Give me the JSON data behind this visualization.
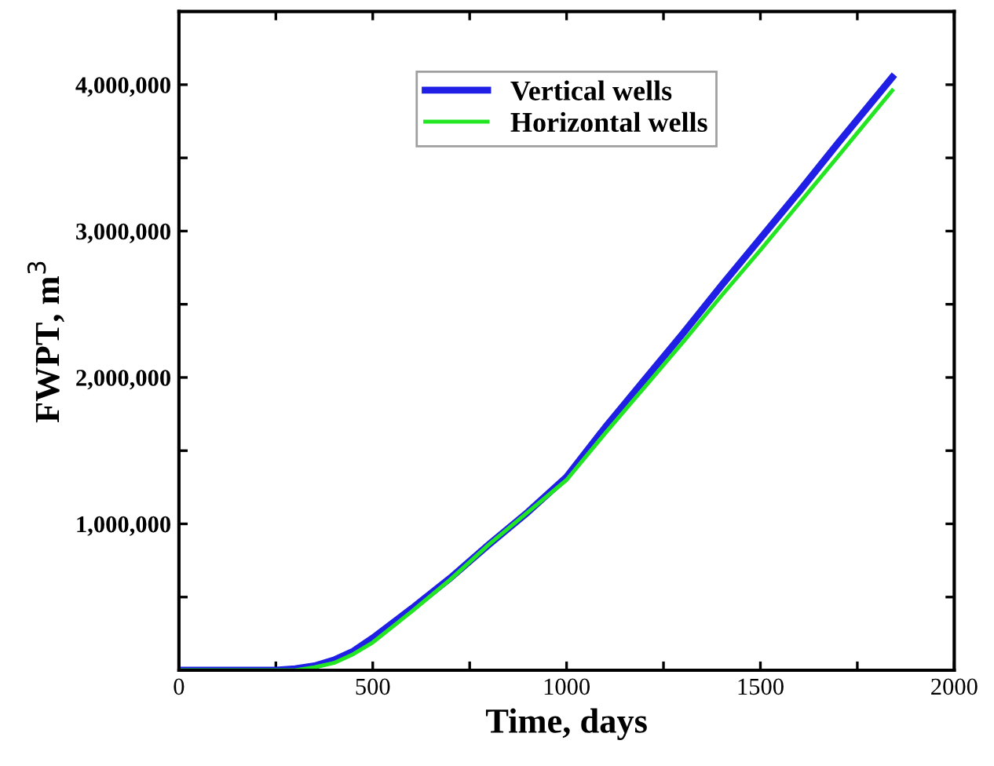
{
  "chart_data": {
    "type": "line",
    "xlabel": "Time, days",
    "ylabel": "FWPT, m$^{3}$",
    "xlim": [
      0,
      2000
    ],
    "ylim": [
      0,
      4500000
    ],
    "xticks": [
      0,
      {
        "value": 250,
        "label": null
      },
      500,
      {
        "value": 750,
        "label": null
      },
      1000,
      {
        "value": 1250,
        "label": null
      },
      1500,
      {
        "value": 1750,
        "label": null
      },
      2000
    ],
    "yticks": [
      {
        "value": 500000,
        "label": null
      },
      {
        "value": 1000000,
        "label": "1,000,000"
      },
      {
        "value": 1500000,
        "label": null
      },
      {
        "value": 2000000,
        "label": "2,000,000"
      },
      {
        "value": 2500000,
        "label": null
      },
      {
        "value": 3000000,
        "label": "3,000,000"
      },
      {
        "value": 3500000,
        "label": null
      },
      {
        "value": 4000000,
        "label": "4,000,000"
      }
    ],
    "x": [
      0,
      250,
      300,
      350,
      400,
      450,
      500,
      600,
      700,
      800,
      900,
      1000,
      1100,
      1200,
      1300,
      1400,
      1500,
      1600,
      1700,
      1840
    ],
    "series": [
      {
        "name": "Vertical wells",
        "color": "#1f1fe6",
        "values": [
          0,
          0,
          10000,
          30000,
          70000,
          130000,
          220000,
          420000,
          630000,
          860000,
          1080000,
          1320000,
          1660000,
          1980000,
          2300000,
          2630000,
          2950000,
          3270000,
          3600000,
          4050000
        ]
      },
      {
        "name": "Horizontal wells",
        "color": "#22e622",
        "values": [
          0,
          0,
          0,
          20000,
          50000,
          110000,
          190000,
          400000,
          620000,
          860000,
          1080000,
          1300000,
          1620000,
          1930000,
          2240000,
          2560000,
          2870000,
          3190000,
          3510000,
          3960000
        ]
      }
    ],
    "legend": "top center",
    "grid": false,
    "line_style": "solid",
    "marker": "none"
  }
}
